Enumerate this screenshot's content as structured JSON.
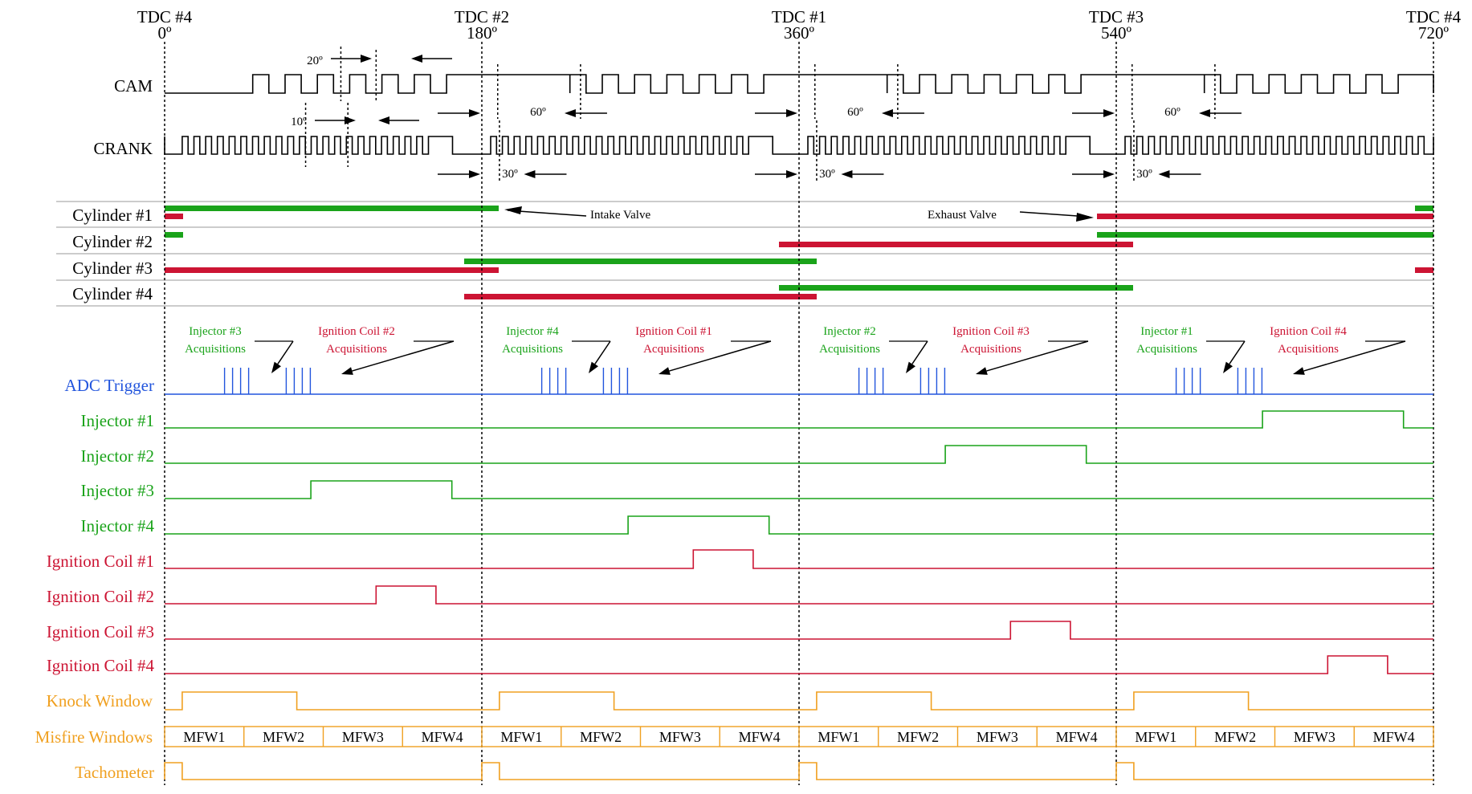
{
  "tdc_markers": [
    {
      "tdc": "TDC #4",
      "deg": "0º"
    },
    {
      "tdc": "TDC #2",
      "deg": "180º"
    },
    {
      "tdc": "TDC #1",
      "deg": "360º"
    },
    {
      "tdc": "TDC #3",
      "deg": "540º"
    },
    {
      "tdc": "TDC #4",
      "deg": "720º"
    }
  ],
  "signal_labels": {
    "cam": "CAM",
    "crank": "CRANK",
    "cyl1": "Cylinder #1",
    "cyl2": "Cylinder #2",
    "cyl3": "Cylinder #3",
    "cyl4": "Cylinder #4",
    "adc": "ADC Trigger",
    "inj1": "Injector #1",
    "inj2": "Injector #2",
    "inj3": "Injector #3",
    "inj4": "Injector #4",
    "ign1": "Ignition Coil #1",
    "ign2": "Ignition Coil #2",
    "ign3": "Ignition Coil #3",
    "ign4": "Ignition Coil #4",
    "knock": "Knock Window",
    "misfire": "Misfire Windows",
    "tach": "Tachometer"
  },
  "angle_annotations": {
    "cam_tooth": "20º",
    "crank_tooth": "10º",
    "cam_gap": [
      "60º",
      "60º",
      "60º"
    ],
    "crank_gap": [
      "30º",
      "30º",
      "30º"
    ]
  },
  "valve_labels": {
    "intake": "Intake Valve",
    "exhaust": "Exhaust Valve"
  },
  "acquisition_groups": [
    {
      "inj_line1": "Injector #3",
      "inj_line2": "Acquisitions",
      "ign_line1": "Ignition Coil #2",
      "ign_line2": "Acquisitions"
    },
    {
      "inj_line1": "Injector #4",
      "inj_line2": "Acquisitions",
      "ign_line1": "Ignition Coil #1",
      "ign_line2": "Acquisitions"
    },
    {
      "inj_line1": "Injector #2",
      "inj_line2": "Acquisitions",
      "ign_line1": "Ignition Coil #3",
      "ign_line2": "Acquisitions"
    },
    {
      "inj_line1": "Injector #1",
      "inj_line2": "Acquisitions",
      "ign_line1": "Ignition Coil #4",
      "ign_line2": "Acquisitions"
    }
  ],
  "misfire_windows": [
    "MFW1",
    "MFW2",
    "MFW3",
    "MFW4",
    "MFW1",
    "MFW2",
    "MFW3",
    "MFW4",
    "MFW1",
    "MFW2",
    "MFW3",
    "MFW4",
    "MFW1",
    "MFW2",
    "MFW3",
    "MFW4"
  ],
  "colors": {
    "black": "#000000",
    "intake_green": "#1aa31a",
    "exhaust_red": "#cc1433",
    "adc_blue": "#2255dd",
    "injector_green": "#1aa31a",
    "ignition_red": "#cc1433",
    "knock_orange": "#f0a020"
  }
}
